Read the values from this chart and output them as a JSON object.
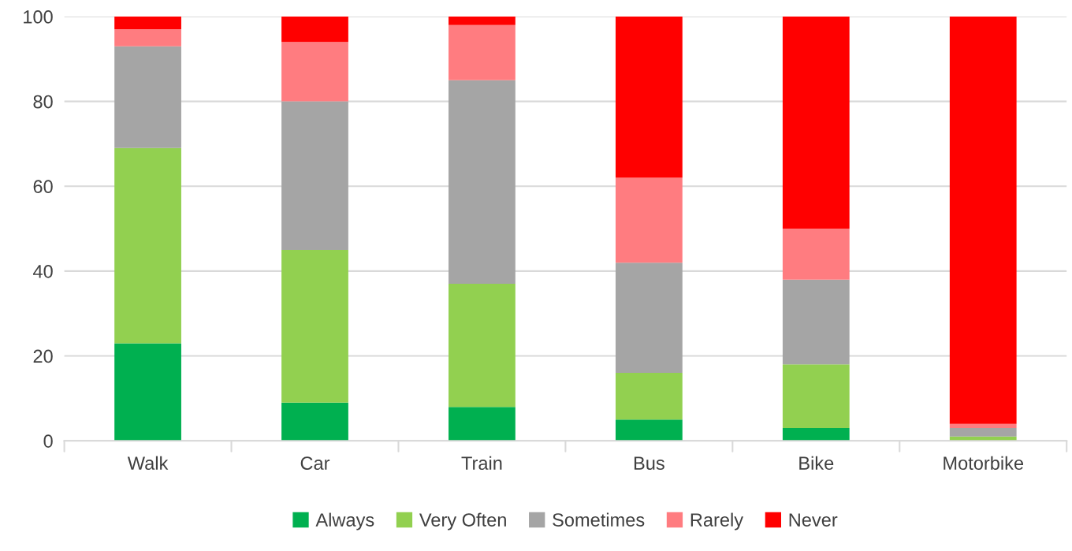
{
  "chart_data": {
    "type": "bar",
    "stacked": true,
    "categories": [
      "Walk",
      "Car",
      "Train",
      "Bus",
      "Bike",
      "Motorbike"
    ],
    "series": [
      {
        "name": "Always",
        "color": "#00b050",
        "values": [
          23,
          9,
          8,
          5,
          3,
          0
        ]
      },
      {
        "name": "Very Often",
        "color": "#92d050",
        "values": [
          46,
          36,
          29,
          11,
          15,
          1
        ]
      },
      {
        "name": "Sometimes",
        "color": "#a5a5a5",
        "values": [
          24,
          35,
          48,
          26,
          20,
          2
        ]
      },
      {
        "name": "Rarely",
        "color": "#ff7c80",
        "values": [
          4,
          14,
          13,
          20,
          12,
          1
        ]
      },
      {
        "name": "Never",
        "color": "#ff0000",
        "values": [
          3,
          6,
          2,
          38,
          50,
          96
        ]
      }
    ],
    "ylim": [
      0,
      100
    ],
    "yticks": [
      0,
      20,
      40,
      60,
      80,
      100
    ],
    "grid": "y",
    "legend": "bottom"
  }
}
